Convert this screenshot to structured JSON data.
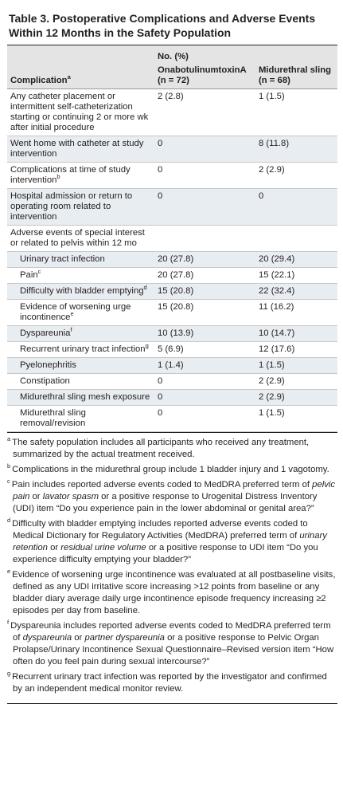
{
  "title": "Table 3. Postoperative Complications and Adverse Events Within 12 Months in the Safety Population",
  "table": {
    "group_header": "No. (%)",
    "columns": [
      {
        "label": "Complication",
        "note": "a"
      },
      {
        "label": "OnabotulinumtoxinA (n = 72)"
      },
      {
        "label": "Midurethral sling (n = 68)"
      }
    ],
    "rows": [
      {
        "label": "Any catheter placement or intermittent self-catheterization starting or continuing 2 or more wk after initial procedure",
        "values": [
          "2 (2.8)",
          "1 (1.5)"
        ]
      },
      {
        "label": "Went home with catheter at study intervention",
        "values": [
          "0",
          "8 (11.8)"
        ]
      },
      {
        "label": "Complications at time of study intervention",
        "note": "b",
        "values": [
          "0",
          "2 (2.9)"
        ]
      },
      {
        "label": "Hospital admission or return to operating room related to intervention",
        "values": [
          "0",
          "0"
        ]
      },
      {
        "label": "Adverse events of special interest or related to pelvis within 12 mo",
        "subrows": [
          {
            "label": "Urinary tract infection",
            "values": [
              "20 (27.8)",
              "20 (29.4)"
            ]
          },
          {
            "label": "Pain",
            "note": "c",
            "values": [
              "20 (27.8)",
              "15 (22.1)"
            ]
          },
          {
            "label": "Difficulty with bladder emptying",
            "note": "d",
            "values": [
              "15 (20.8)",
              "22 (32.4)"
            ]
          },
          {
            "label": "Evidence of worsening urge incontinence",
            "note": "e",
            "values": [
              "15 (20.8)",
              "11 (16.2)"
            ]
          },
          {
            "label": "Dyspareunia",
            "note": "f",
            "values": [
              "10 (13.9)",
              "10 (14.7)"
            ]
          },
          {
            "label": "Recurrent urinary tract infection",
            "note": "g",
            "values": [
              "5 (6.9)",
              "12 (17.6)"
            ]
          },
          {
            "label": "Pyelonephritis",
            "values": [
              "1 (1.4)",
              "1 (1.5)"
            ]
          },
          {
            "label": "Constipation",
            "values": [
              "0",
              "2 (2.9)"
            ]
          },
          {
            "label": "Midurethral sling mesh exposure",
            "values": [
              "0",
              "2 (2.9)"
            ]
          },
          {
            "label": "Midurethral sling removal/revision",
            "values": [
              "0",
              "1 (1.5)"
            ]
          }
        ]
      }
    ]
  },
  "footnotes": [
    {
      "mark": "a",
      "segments": [
        {
          "text": "The safety population includes all participants who received any treatment, summarized by the actual treatment received."
        }
      ]
    },
    {
      "mark": "b",
      "segments": [
        {
          "text": "Complications in the midurethral group include 1 bladder injury and 1 vagotomy."
        }
      ]
    },
    {
      "mark": "c",
      "segments": [
        {
          "text": "Pain includes reported adverse events coded to MedDRA preferred term of "
        },
        {
          "text": "pelvic pain",
          "italic": true
        },
        {
          "text": " or "
        },
        {
          "text": "lavator spasm",
          "italic": true
        },
        {
          "text": " or a positive response to Urogenital Distress Inventory (UDI) item “Do you experience pain in the lower abdominal or genital area?”"
        }
      ]
    },
    {
      "mark": "d",
      "segments": [
        {
          "text": "Difficulty with bladder emptying includes reported adverse events coded to Medical Dictionary for Regulatory Activities (MedDRA) preferred term of "
        },
        {
          "text": "urinary retention",
          "italic": true
        },
        {
          "text": " or "
        },
        {
          "text": "residual urine volume",
          "italic": true
        },
        {
          "text": " or a positive response to UDI item “Do you experience difficulty emptying your bladder?”"
        }
      ]
    },
    {
      "mark": "e",
      "segments": [
        {
          "text": "Evidence of worsening urge incontinence was evaluated at all postbaseline visits, defined as any UDI irritative score increasing >12 points from baseline or any bladder diary average daily urge incontinence episode frequency increasing ≥2 episodes per day from baseline."
        }
      ]
    },
    {
      "mark": "f",
      "segments": [
        {
          "text": "Dyspareunia includes reported adverse events coded to MedDRA preferred term of "
        },
        {
          "text": "dyspareunia",
          "italic": true
        },
        {
          "text": " or "
        },
        {
          "text": "partner dyspareunia",
          "italic": true
        },
        {
          "text": " or a positive response to Pelvic Organ Prolapse/Urinary Incontinence Sexual Questionnaire–Revised version item “How often do you feel pain during sexual intercourse?”"
        }
      ]
    },
    {
      "mark": "g",
      "segments": [
        {
          "text": "Recurrent urinary tract infection was reported by the investigator and confirmed by an independent medical monitor review."
        }
      ]
    }
  ]
}
